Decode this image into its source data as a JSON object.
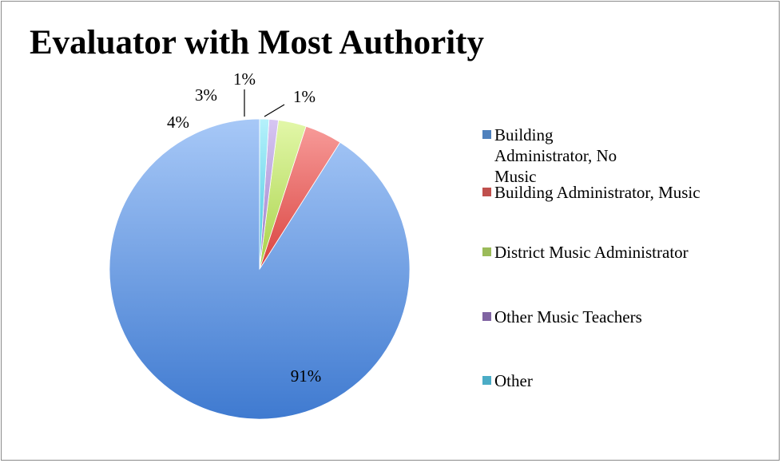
{
  "chart_data": {
    "type": "pie",
    "title": "Evaluator with Most Authority",
    "categories": [
      "Building Administrator, No Music",
      "Building Administrator, Music",
      "District Music Administrator",
      "Other Music Teachers",
      "Other"
    ],
    "values": [
      91,
      4,
      3,
      1,
      1
    ],
    "labels": [
      "91%",
      "4%",
      "3%",
      "1%",
      "1%"
    ],
    "colors": [
      "#4f81bd",
      "#c0504d",
      "#9bbb59",
      "#8064a2",
      "#4bacc6"
    ],
    "legend_position": "right",
    "start_angle": "top, clockwise"
  }
}
